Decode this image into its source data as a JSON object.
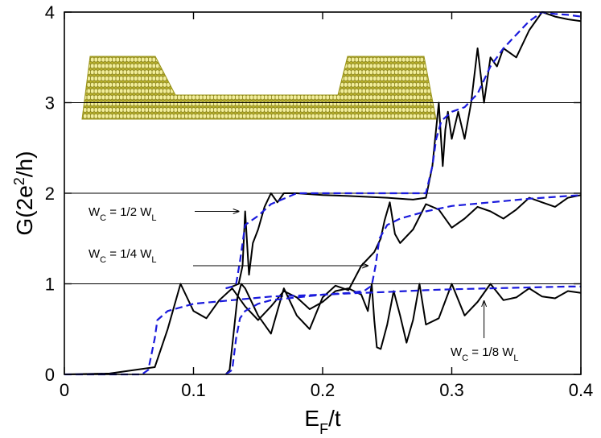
{
  "chart_data": {
    "type": "line",
    "xlabel": "E_F/t",
    "ylabel": "G(2e^2/h)",
    "xlim": [
      0,
      0.4
    ],
    "ylim": [
      0,
      4
    ],
    "x_ticks": [
      "0",
      "0.1",
      "0.2",
      "0.3",
      "0.4"
    ],
    "x_tick_values": [
      0,
      0.1,
      0.2,
      0.3,
      0.4
    ],
    "y_ticks": [
      "0",
      "1",
      "2",
      "3",
      "4"
    ],
    "y_tick_values": [
      0,
      1,
      2,
      3,
      4
    ],
    "reference_lines_y": [
      1,
      2,
      3
    ],
    "inset": "graphene nanoribbon constriction lattice (wide leads, narrow central constriction)",
    "series": [
      {
        "name": "W_C = 1/8 W_L (solid)",
        "style": "solid",
        "color": "#000000",
        "x": [
          0,
          0.035,
          0.05,
          0.07,
          0.08,
          0.09,
          0.1,
          0.11,
          0.12,
          0.13,
          0.14,
          0.15,
          0.16,
          0.17,
          0.18,
          0.19,
          0.2,
          0.21,
          0.22,
          0.23,
          0.235,
          0.238,
          0.24,
          0.242,
          0.245,
          0.25,
          0.255,
          0.26,
          0.265,
          0.27,
          0.275,
          0.28,
          0.29,
          0.3,
          0.31,
          0.32,
          0.33,
          0.34,
          0.35,
          0.36,
          0.37,
          0.38,
          0.39,
          0.4
        ],
        "y": [
          0,
          0.01,
          0.04,
          0.08,
          0.5,
          1.0,
          0.7,
          0.62,
          0.82,
          0.95,
          0.75,
          0.6,
          0.75,
          0.92,
          0.85,
          0.72,
          0.8,
          0.92,
          0.95,
          0.88,
          0.7,
          1.0,
          0.6,
          0.3,
          0.28,
          0.55,
          0.92,
          0.65,
          0.35,
          0.6,
          1.0,
          0.55,
          0.62,
          1.0,
          0.65,
          0.8,
          1.0,
          0.82,
          0.85,
          0.95,
          0.86,
          0.84,
          0.92,
          0.9
        ]
      },
      {
        "name": "W_C = 1/8 W_L (dashed)",
        "style": "dashed",
        "color": "#1a1adc",
        "x": [
          0,
          0.06,
          0.065,
          0.07,
          0.072,
          0.08,
          0.1,
          0.13,
          0.16,
          0.2,
          0.23,
          0.25,
          0.28,
          0.3,
          0.33,
          0.36,
          0.39,
          0.4
        ],
        "y": [
          0,
          0,
          0.05,
          0.4,
          0.6,
          0.7,
          0.78,
          0.82,
          0.86,
          0.88,
          0.9,
          0.91,
          0.93,
          0.94,
          0.95,
          0.96,
          0.97,
          0.97
        ]
      },
      {
        "name": "W_C = 1/4 W_L (solid)",
        "style": "solid",
        "color": "#000000",
        "x": [
          0.125,
          0.128,
          0.131,
          0.134,
          0.137,
          0.14,
          0.15,
          0.16,
          0.17,
          0.18,
          0.19,
          0.2,
          0.21,
          0.22,
          0.23,
          0.24,
          0.245,
          0.248,
          0.252,
          0.256,
          0.26,
          0.27,
          0.28,
          0.29,
          0.3,
          0.31,
          0.32,
          0.33,
          0.34,
          0.35,
          0.36,
          0.37,
          0.38,
          0.39,
          0.4
        ],
        "y": [
          0,
          0.05,
          0.45,
          0.85,
          1.0,
          0.95,
          0.65,
          0.45,
          0.95,
          0.65,
          0.5,
          0.85,
          0.98,
          0.93,
          1.2,
          1.35,
          1.5,
          1.7,
          1.9,
          1.55,
          1.45,
          1.6,
          1.88,
          1.82,
          1.62,
          1.72,
          1.85,
          1.8,
          1.72,
          1.82,
          1.95,
          1.9,
          1.85,
          1.95,
          1.98
        ]
      },
      {
        "name": "W_C = 1/4 W_L (dashed)",
        "style": "dashed",
        "color": "#1a1adc",
        "x": [
          0.125,
          0.13,
          0.133,
          0.136,
          0.14,
          0.15,
          0.16,
          0.18,
          0.2,
          0.22,
          0.232,
          0.238,
          0.241,
          0.244,
          0.25,
          0.26,
          0.28,
          0.3,
          0.33,
          0.36,
          0.39,
          0.4
        ],
        "y": [
          0,
          0.05,
          0.4,
          0.62,
          0.7,
          0.78,
          0.82,
          0.85,
          0.88,
          0.9,
          0.92,
          0.98,
          1.2,
          1.5,
          1.65,
          1.72,
          1.8,
          1.86,
          1.9,
          1.94,
          1.97,
          1.98
        ]
      },
      {
        "name": "W_C = 1/2 W_L (solid)",
        "style": "solid",
        "color": "#000000",
        "x": [
          0.125,
          0.13,
          0.135,
          0.138,
          0.14,
          0.143,
          0.146,
          0.15,
          0.155,
          0.16,
          0.165,
          0.17,
          0.18,
          0.2,
          0.22,
          0.25,
          0.27,
          0.28,
          0.285,
          0.29,
          0.293,
          0.295,
          0.297,
          0.3,
          0.305,
          0.31,
          0.315,
          0.32,
          0.325,
          0.33,
          0.335,
          0.34,
          0.35,
          0.36,
          0.37,
          0.38,
          0.39,
          0.4
        ],
        "y": [
          0.95,
          0.97,
          1.0,
          1.2,
          1.8,
          1.1,
          1.45,
          1.6,
          1.85,
          2.0,
          1.9,
          2.0,
          2.0,
          1.98,
          1.97,
          1.95,
          1.93,
          1.95,
          2.3,
          3.0,
          2.3,
          2.7,
          2.9,
          2.6,
          2.9,
          2.6,
          3.0,
          3.6,
          3.0,
          3.5,
          3.4,
          3.6,
          3.5,
          3.8,
          4.0,
          3.95,
          3.92,
          3.9
        ]
      },
      {
        "name": "W_C = 1/2 W_L (dashed)",
        "style": "dashed",
        "color": "#1a1adc",
        "x": [
          0.125,
          0.13,
          0.133,
          0.136,
          0.14,
          0.15,
          0.16,
          0.18,
          0.2,
          0.25,
          0.28,
          0.285,
          0.288,
          0.292,
          0.3,
          0.31,
          0.32,
          0.33,
          0.34,
          0.35,
          0.36,
          0.37,
          0.38,
          0.39,
          0.4
        ],
        "y": [
          0.95,
          0.97,
          1.0,
          1.25,
          1.65,
          1.75,
          1.88,
          2.0,
          2.0,
          2.0,
          2.0,
          2.3,
          2.6,
          2.8,
          2.9,
          2.95,
          3.1,
          3.4,
          3.6,
          3.75,
          3.9,
          4.0,
          3.98,
          3.97,
          3.95
        ]
      }
    ],
    "annotations": [
      {
        "label": "W_C = 1/2 W_L",
        "text": "W",
        "sub": "C",
        "mid": " = 1/2 W",
        "sub2": "L",
        "arrow_to": [
          0.14,
          1.8
        ]
      },
      {
        "label": "W_C = 1/4 W_L",
        "text": "W",
        "sub": "C",
        "mid": " = 1/4 W",
        "sub2": "L",
        "arrow_to": [
          0.24,
          1.2
        ]
      },
      {
        "label": "W_C = 1/8 W_L",
        "text": "W",
        "sub": "C",
        "mid": " = 1/8 W",
        "sub2": "L",
        "arrow_to": [
          0.325,
          0.88
        ]
      }
    ]
  }
}
